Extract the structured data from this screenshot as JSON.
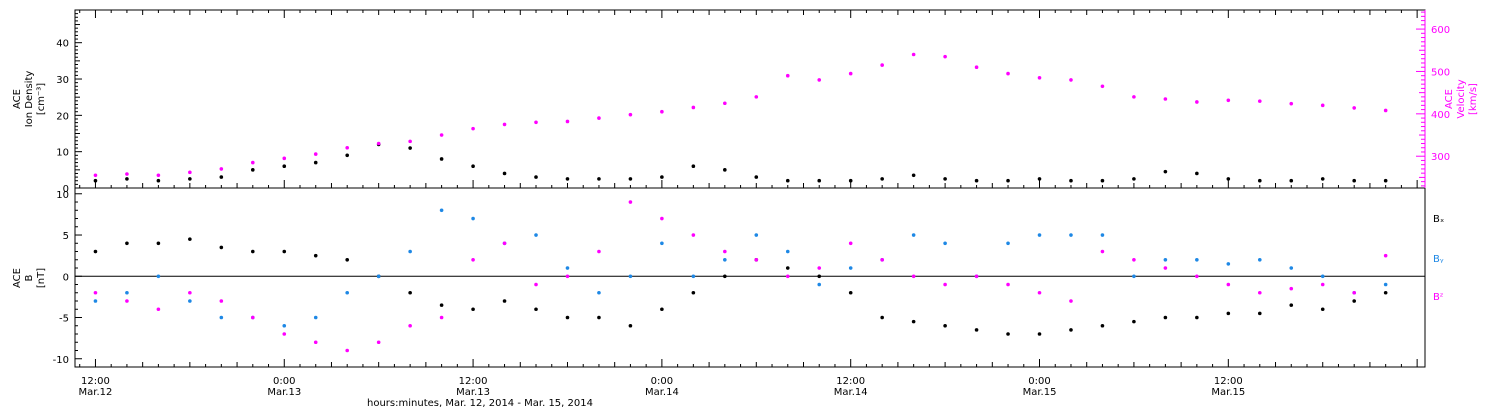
{
  "chart_data": [
    {
      "type": "scatter",
      "panel": "top",
      "ylabel_left": [
        "ACE",
        "Ion Density",
        "[cm⁻³]"
      ],
      "ylabel_right": [
        "ACE",
        "Velocity",
        "[km/s]"
      ],
      "ylim_left": [
        0,
        49
      ],
      "yticks_left": [
        0,
        10,
        20,
        30,
        40
      ],
      "ylim_right": [
        225,
        645
      ],
      "yticks_right": [
        300,
        400,
        500,
        600
      ],
      "series": [
        {
          "color": "#000000",
          "axis": "left",
          "x": [
            0,
            2,
            4,
            6,
            8,
            10,
            12,
            14,
            16,
            18,
            20,
            22,
            24,
            26,
            28,
            30,
            32,
            34,
            36,
            38,
            40,
            42,
            44,
            46,
            48,
            50,
            52,
            54,
            56,
            58,
            60,
            62,
            64,
            66,
            68,
            70,
            72,
            74,
            76,
            78,
            80,
            82
          ],
          "values": [
            2,
            2.5,
            2,
            2.5,
            3,
            5,
            6,
            7,
            9,
            12,
            11,
            8,
            6,
            4,
            3,
            2.5,
            2.5,
            2.5,
            3,
            6,
            5,
            3,
            2,
            2,
            2,
            2.5,
            3.5,
            2.5,
            2,
            2,
            2.5,
            2,
            2,
            2.5,
            4.5,
            4,
            2.5,
            2,
            2,
            2.5,
            2,
            2
          ]
        },
        {
          "color": "#ff00ff",
          "axis": "right",
          "x": [
            0,
            2,
            4,
            6,
            8,
            10,
            12,
            14,
            16,
            18,
            20,
            22,
            24,
            26,
            28,
            30,
            32,
            34,
            36,
            38,
            40,
            42,
            44,
            46,
            48,
            50,
            52,
            54,
            56,
            58,
            60,
            62,
            64,
            66,
            68,
            70,
            72,
            74,
            76,
            78,
            80,
            82
          ],
          "values": [
            255,
            258,
            255,
            262,
            270,
            285,
            295,
            305,
            320,
            330,
            335,
            350,
            365,
            375,
            380,
            382,
            390,
            398,
            405,
            415,
            425,
            440,
            490,
            480,
            495,
            515,
            540,
            535,
            510,
            495,
            485,
            480,
            465,
            440,
            435,
            428,
            432,
            430,
            424,
            420,
            414,
            408
          ]
        }
      ]
    },
    {
      "type": "scatter",
      "panel": "bottom",
      "ylabel": [
        "ACE",
        "B",
        "[nT]"
      ],
      "ylim": [
        -11,
        10.7
      ],
      "yticks": [
        -10,
        -5,
        0,
        5,
        10
      ],
      "zero_line": true,
      "series": [
        {
          "name": "Bₓ",
          "color": "#000000",
          "x": [
            0,
            2,
            4,
            6,
            8,
            10,
            12,
            14,
            16,
            18,
            20,
            22,
            24,
            26,
            28,
            30,
            32,
            34,
            36,
            38,
            40,
            42,
            44,
            46,
            48,
            50,
            52,
            54,
            56,
            58,
            60,
            62,
            64,
            66,
            68,
            70,
            72,
            74,
            76,
            78,
            80,
            82
          ],
          "values": [
            3,
            4,
            4,
            4.5,
            3.5,
            3,
            3,
            2.5,
            2,
            0,
            -2,
            -3.5,
            -4,
            -3,
            -4,
            -5,
            -5,
            -6,
            -4,
            -2,
            0,
            2,
            1,
            0,
            -2,
            -5,
            -5.5,
            -6,
            -6.5,
            -7,
            -7,
            -6.5,
            -6,
            -5.5,
            -5,
            -5,
            -4.5,
            -4.5,
            -3.5,
            -4,
            -3,
            -2
          ]
        },
        {
          "name": "Bᵧ",
          "color": "#1e88e5",
          "x": [
            0,
            2,
            4,
            6,
            8,
            10,
            12,
            14,
            16,
            18,
            20,
            22,
            24,
            26,
            28,
            30,
            32,
            34,
            36,
            38,
            40,
            42,
            44,
            46,
            48,
            50,
            52,
            54,
            56,
            58,
            60,
            62,
            64,
            66,
            68,
            70,
            72,
            74,
            76,
            78,
            80,
            82
          ],
          "values": [
            -3,
            -2,
            0,
            -3,
            -5,
            -5,
            -6,
            -5,
            -2,
            0,
            3,
            8,
            7,
            4,
            5,
            1,
            -2,
            0,
            4,
            0,
            2,
            5,
            3,
            -1,
            1,
            2,
            5,
            4,
            0,
            4,
            5,
            5,
            5,
            0,
            2,
            2,
            1.5,
            2,
            1,
            0,
            -2,
            -1
          ]
        },
        {
          "name": "Bᶻ",
          "color": "#ff00ff",
          "x": [
            0,
            2,
            4,
            6,
            8,
            10,
            12,
            14,
            16,
            18,
            20,
            22,
            24,
            26,
            28,
            30,
            32,
            34,
            36,
            38,
            40,
            42,
            44,
            46,
            48,
            50,
            52,
            54,
            56,
            58,
            60,
            62,
            64,
            66,
            68,
            70,
            72,
            74,
            76,
            78,
            80,
            82
          ],
          "values": [
            -2,
            -3,
            -4,
            -2,
            -3,
            -5,
            -7,
            -8,
            -9,
            -8,
            -6,
            -5,
            2,
            4,
            -1,
            0,
            3,
            9,
            7,
            5,
            3,
            2,
            0,
            1,
            4,
            2,
            0,
            -1,
            0,
            -1,
            -2,
            -3,
            3,
            2,
            1,
            0,
            -1,
            -2,
            -1.5,
            -1,
            -2,
            2.5
          ]
        }
      ]
    }
  ],
  "x_axis": {
    "range_hours": [
      -1.3,
      84.5
    ],
    "major_ticks": [
      {
        "hour": 0,
        "time": "12:00",
        "date": "Mar.12"
      },
      {
        "hour": 12,
        "time": "0:00",
        "date": "Mar.13"
      },
      {
        "hour": 24,
        "time": "12:00",
        "date": "Mar.13"
      },
      {
        "hour": 36,
        "time": "0:00",
        "date": "Mar.14"
      },
      {
        "hour": 48,
        "time": "12:00",
        "date": "Mar.14"
      },
      {
        "hour": 60,
        "time": "0:00",
        "date": "Mar.15"
      },
      {
        "hour": 72,
        "time": "12:00",
        "date": "Mar.15"
      }
    ],
    "title": "hours:minutes, Mar. 12, 2014 - Mar. 15, 2014"
  },
  "legend": {
    "placement": "right",
    "entries": [
      {
        "label": "Bₓ",
        "color": "#000000"
      },
      {
        "label": "Bᵧ",
        "color": "#1e88e5"
      },
      {
        "label": "Bᶻ",
        "color": "#ff00ff"
      }
    ]
  }
}
